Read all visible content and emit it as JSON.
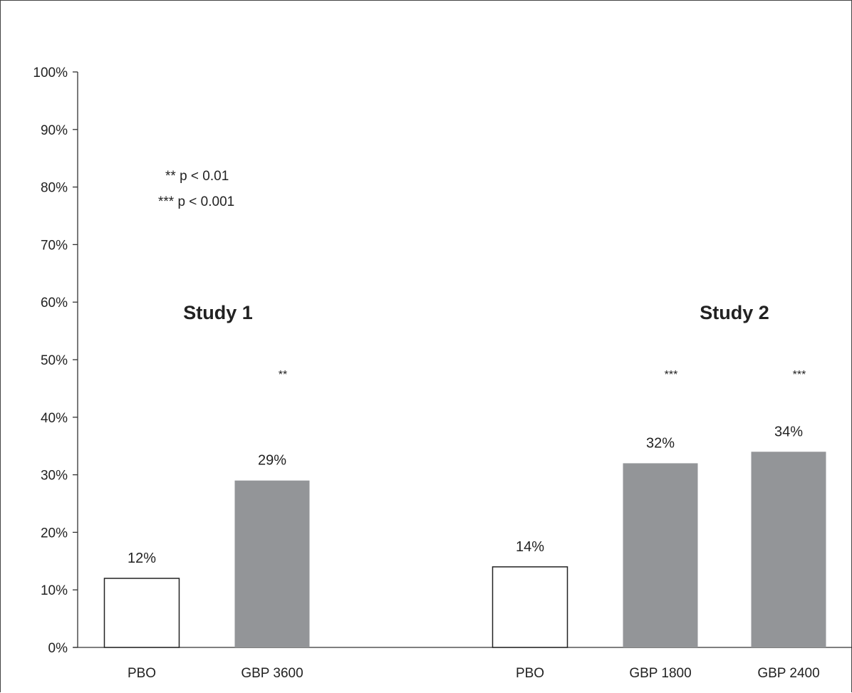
{
  "chart_data": {
    "type": "bar",
    "ylim": [
      0,
      100
    ],
    "yticks": [
      "0%",
      "10%",
      "20%",
      "30%",
      "40%",
      "50%",
      "60%",
      "70%",
      "80%",
      "90%",
      "100%"
    ],
    "grid": false,
    "legend": [
      {
        "text": "** p < 0.01"
      },
      {
        "text": "*** p < 0.001"
      }
    ],
    "groups": [
      {
        "label": "Study 1",
        "bars": [
          {
            "category": "PBO",
            "value": 12,
            "value_label": "12%",
            "significance": "",
            "fill": "#ffffff"
          },
          {
            "category": "GBP 3600",
            "value": 29,
            "value_label": "29%",
            "significance": "**",
            "fill": "#939598"
          }
        ]
      },
      {
        "label": "Study 2",
        "bars": [
          {
            "category": "PBO",
            "value": 14,
            "value_label": "14%",
            "significance": "",
            "fill": "#ffffff"
          },
          {
            "category": "GBP 1800",
            "value": 32,
            "value_label": "32%",
            "significance": "***",
            "fill": "#939598"
          },
          {
            "category": "GBP 2400",
            "value": 34,
            "value_label": "34%",
            "significance": "***",
            "fill": "#939598"
          }
        ]
      }
    ]
  }
}
